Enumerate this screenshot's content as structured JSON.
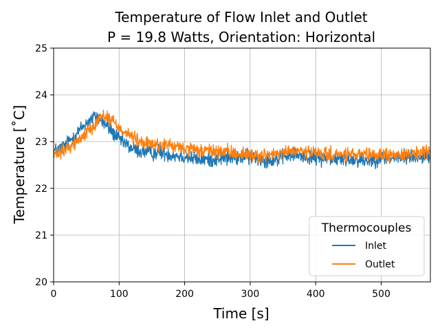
{
  "chart_data": {
    "type": "line",
    "title": "Temperature of Flow Inlet and Outlet",
    "subtitle": "P = 19.8 Watts, Orientation: Horizontal",
    "xlabel": "Time [s]",
    "ylabel": "Temperature [˚C]",
    "xlim": [
      0,
      575
    ],
    "ylim": [
      20,
      25
    ],
    "xticks": [
      0,
      100,
      200,
      300,
      400,
      500
    ],
    "yticks": [
      20,
      21,
      22,
      23,
      24,
      25
    ],
    "grid": true,
    "legend": {
      "title": "Thermocouples",
      "placement": "lower-right"
    },
    "series": [
      {
        "name": "Inlet",
        "color": "#1f77b4",
        "noise": 0.1,
        "x": [
          0,
          10,
          20,
          30,
          40,
          50,
          60,
          65,
          70,
          80,
          90,
          100,
          110,
          120,
          130,
          140,
          150,
          160,
          170,
          180,
          200,
          220,
          240,
          260,
          280,
          300,
          320,
          340,
          360,
          380,
          400,
          420,
          440,
          460,
          480,
          500,
          520,
          540,
          560,
          575
        ],
        "y": [
          22.8,
          22.85,
          22.95,
          23.1,
          23.25,
          23.4,
          23.5,
          23.55,
          23.5,
          23.35,
          23.2,
          23.05,
          22.95,
          22.85,
          22.8,
          22.78,
          22.75,
          22.78,
          22.75,
          22.72,
          22.68,
          22.62,
          22.62,
          22.65,
          22.65,
          22.68,
          22.62,
          22.62,
          22.72,
          22.7,
          22.65,
          22.65,
          22.62,
          22.62,
          22.6,
          22.65,
          22.65,
          22.68,
          22.68,
          22.68
        ]
      },
      {
        "name": "Outlet",
        "color": "#ff7f0e",
        "noise": 0.09,
        "x": [
          0,
          10,
          20,
          30,
          40,
          50,
          60,
          70,
          75,
          80,
          90,
          100,
          110,
          120,
          130,
          140,
          150,
          160,
          170,
          180,
          200,
          220,
          240,
          260,
          280,
          300,
          320,
          340,
          360,
          380,
          400,
          420,
          440,
          460,
          480,
          500,
          520,
          540,
          560,
          575
        ],
        "y": [
          22.7,
          22.75,
          22.85,
          22.95,
          23.05,
          23.2,
          23.35,
          23.5,
          23.55,
          23.55,
          23.45,
          23.3,
          23.2,
          23.1,
          23.0,
          22.95,
          22.95,
          22.92,
          22.95,
          22.9,
          22.85,
          22.8,
          22.8,
          22.78,
          22.75,
          22.72,
          22.7,
          22.72,
          22.8,
          22.78,
          22.75,
          22.72,
          22.72,
          22.72,
          22.7,
          22.72,
          22.7,
          22.75,
          22.75,
          22.75
        ]
      }
    ]
  }
}
